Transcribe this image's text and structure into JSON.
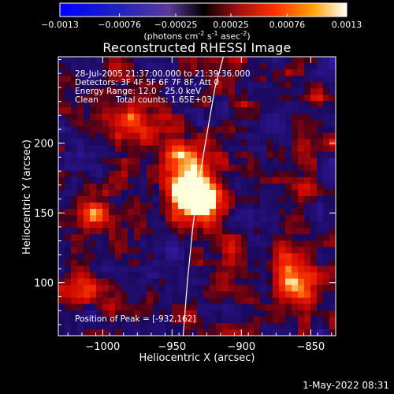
{
  "chart_data": {
    "type": "heatmap",
    "title": "Reconstructed RHESSI Image",
    "colorbar": {
      "ticks": [
        "-0.0013",
        "-0.00076",
        "-0.00025",
        "0.00025",
        "0.00076",
        "0.0013"
      ],
      "range": [
        -0.0013,
        0.0013
      ],
      "units_prefix": "(photons cm",
      "units_sup1": "-2",
      "units_mid1": " s",
      "units_sup2": "-1",
      "units_mid2": " asec",
      "units_sup3": "-2",
      "units_suffix": ")"
    },
    "xlabel": "Heliocentric X (arcsec)",
    "ylabel": "Heliocentric Y (arcsec)",
    "xlim": [
      -1032,
      -832
    ],
    "ylim": [
      62,
      262
    ],
    "xticks": [
      {
        "value": -1000,
        "label": "−1000"
      },
      {
        "value": -950,
        "label": "−950"
      },
      {
        "value": -900,
        "label": "−900"
      },
      {
        "value": -850,
        "label": "−850"
      }
    ],
    "yticks": [
      {
        "value": 100,
        "label": "100"
      },
      {
        "value": 150,
        "label": "150"
      },
      {
        "value": 200,
        "label": "200"
      }
    ],
    "peak": {
      "x": -932,
      "y": 162
    },
    "limb_curve": [
      [
        -942,
        62
      ],
      [
        -939,
        100
      ],
      [
        -935,
        140
      ],
      [
        -931,
        170
      ],
      [
        -926,
        200
      ],
      [
        -919,
        240
      ],
      [
        -913,
        262
      ]
    ],
    "annotations": {
      "line1": "28-Jul-2005 21:37:00.000 to 21:39:36.000",
      "line2": "Detectors: 3F 4F 5F 6F 7F 8F, Att 0",
      "line3": "Energy Range: 12.0 - 25.0 keV",
      "line4_a": "Clean",
      "line4_b": "Total counts: 1.65E+03",
      "peak_text": "Position of Peak = [-932,162]"
    }
  },
  "footer": {
    "date": "1-May-2022 08:31"
  }
}
